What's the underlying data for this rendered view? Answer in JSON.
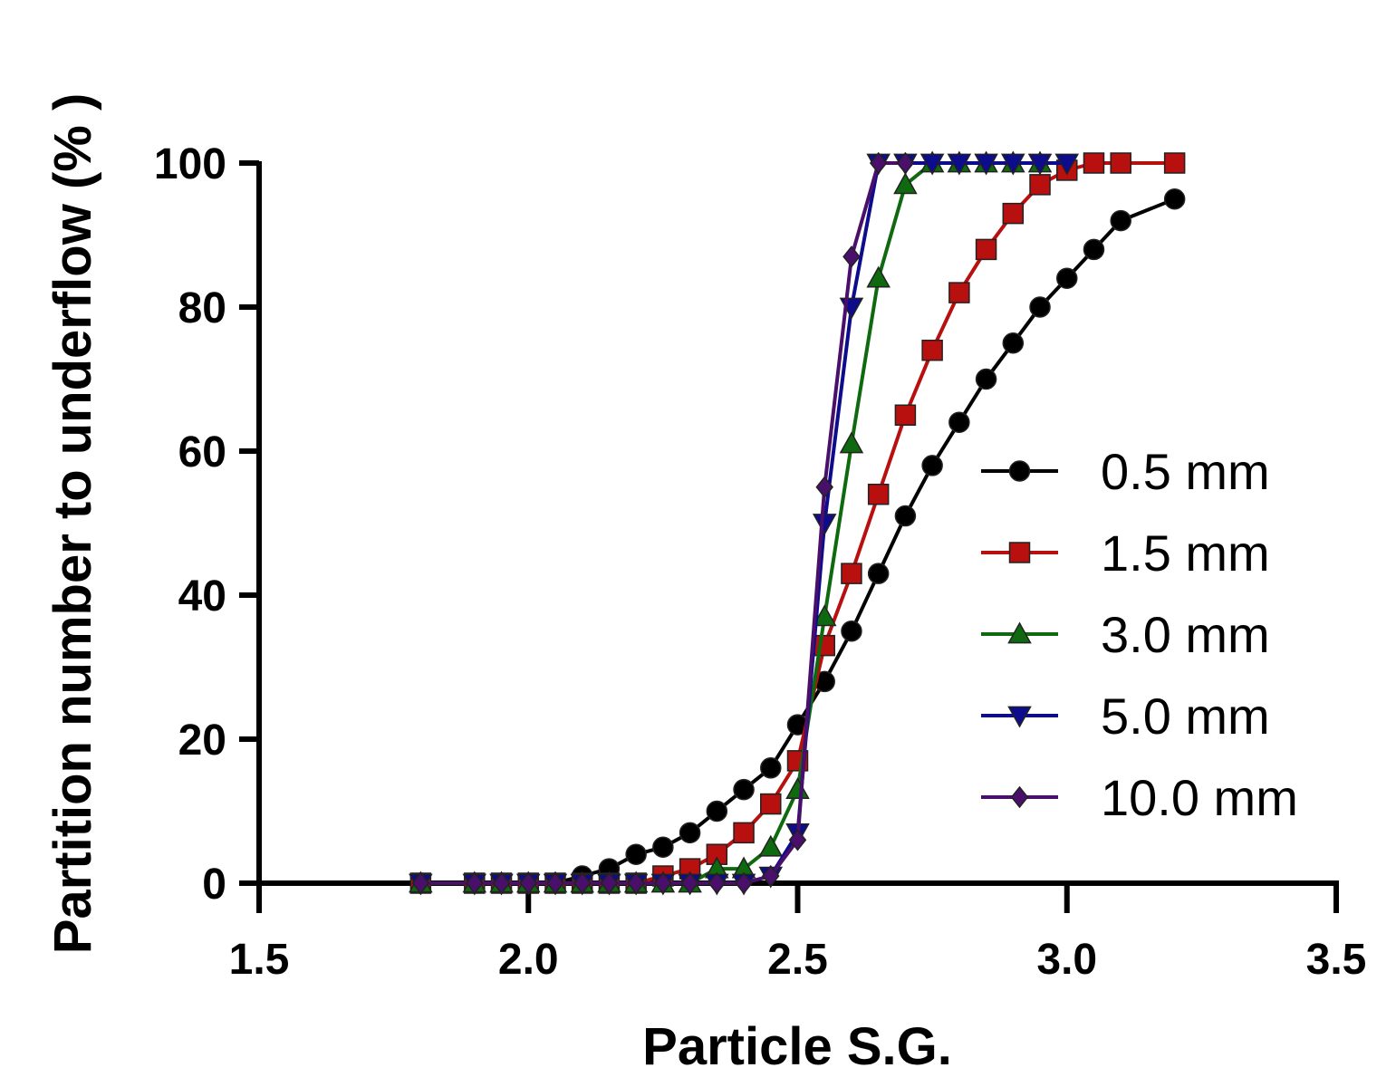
{
  "chart_data": {
    "type": "line",
    "title": "",
    "xlabel": "Particle S.G.",
    "ylabel": "Partition number to underflow (% )",
    "xlim": [
      1.5,
      3.5
    ],
    "ylim": [
      0,
      100
    ],
    "xticks": [
      1.5,
      2.0,
      2.5,
      3.0,
      3.5
    ],
    "xtick_labels": [
      "1.5",
      "2.0",
      "2.5",
      "3.0",
      "3.5"
    ],
    "yticks": [
      0,
      20,
      40,
      60,
      80,
      100
    ],
    "ytick_labels": [
      "0",
      "20",
      "40",
      "60",
      "80",
      "100"
    ],
    "grid": false,
    "legend_position": "right",
    "series": [
      {
        "name": "0.5 mm",
        "color": "#000000",
        "marker": "circle",
        "x": [
          1.8,
          1.9,
          1.95,
          2.0,
          2.05,
          2.1,
          2.15,
          2.2,
          2.25,
          2.3,
          2.35,
          2.4,
          2.45,
          2.5,
          2.55,
          2.6,
          2.65,
          2.7,
          2.75,
          2.8,
          2.85,
          2.9,
          2.95,
          3.0,
          3.05,
          3.1,
          3.2
        ],
        "y": [
          0,
          0,
          0,
          0,
          0,
          1,
          2,
          4,
          5,
          7,
          10,
          13,
          16,
          22,
          28,
          35,
          43,
          51,
          58,
          64,
          70,
          75,
          80,
          84,
          88,
          92,
          95
        ]
      },
      {
        "name": "1.5 mm",
        "color": "#b80f0f",
        "marker": "square",
        "x": [
          1.8,
          1.9,
          1.95,
          2.0,
          2.05,
          2.1,
          2.15,
          2.2,
          2.25,
          2.3,
          2.35,
          2.4,
          2.45,
          2.5,
          2.55,
          2.6,
          2.65,
          2.7,
          2.75,
          2.8,
          2.85,
          2.9,
          2.95,
          3.0,
          3.05,
          3.1,
          3.2
        ],
        "y": [
          0,
          0,
          0,
          0,
          0,
          0,
          0,
          0,
          1,
          2,
          4,
          7,
          11,
          17,
          33,
          43,
          54,
          65,
          74,
          82,
          88,
          93,
          97,
          99,
          100,
          100,
          100
        ]
      },
      {
        "name": "3.0 mm",
        "color": "#0f6a0f",
        "marker": "triangle-up",
        "x": [
          1.8,
          1.9,
          1.95,
          2.0,
          2.05,
          2.1,
          2.15,
          2.2,
          2.25,
          2.3,
          2.35,
          2.4,
          2.45,
          2.5,
          2.55,
          2.6,
          2.65,
          2.7,
          2.75,
          2.8,
          2.85,
          2.9,
          2.95
        ],
        "y": [
          0,
          0,
          0,
          0,
          0,
          0,
          0,
          0,
          0,
          0,
          2,
          2,
          5,
          13,
          37,
          61,
          84,
          97,
          100,
          100,
          100,
          100,
          100
        ]
      },
      {
        "name": "5.0 mm",
        "color": "#0c0c8c",
        "marker": "triangle-down",
        "x": [
          1.8,
          1.9,
          1.95,
          2.0,
          2.05,
          2.1,
          2.15,
          2.2,
          2.25,
          2.3,
          2.35,
          2.4,
          2.45,
          2.5,
          2.55,
          2.6,
          2.65,
          2.7,
          2.75,
          2.8,
          2.85,
          2.9,
          2.95,
          3.0
        ],
        "y": [
          0,
          0,
          0,
          0,
          0,
          0,
          0,
          0,
          0,
          0,
          0,
          0,
          1,
          7,
          50,
          80,
          100,
          100,
          100,
          100,
          100,
          100,
          100,
          100
        ]
      },
      {
        "name": "10.0 mm",
        "color": "#4a0f6a",
        "marker": "diamond",
        "x": [
          1.8,
          1.9,
          1.95,
          2.0,
          2.05,
          2.1,
          2.15,
          2.2,
          2.25,
          2.3,
          2.35,
          2.4,
          2.45,
          2.5,
          2.55,
          2.6,
          2.65,
          2.7
        ],
        "y": [
          0,
          0,
          0,
          0,
          0,
          0,
          0,
          0,
          0,
          0,
          0,
          0,
          1,
          6,
          55,
          87,
          100,
          100
        ]
      }
    ]
  }
}
